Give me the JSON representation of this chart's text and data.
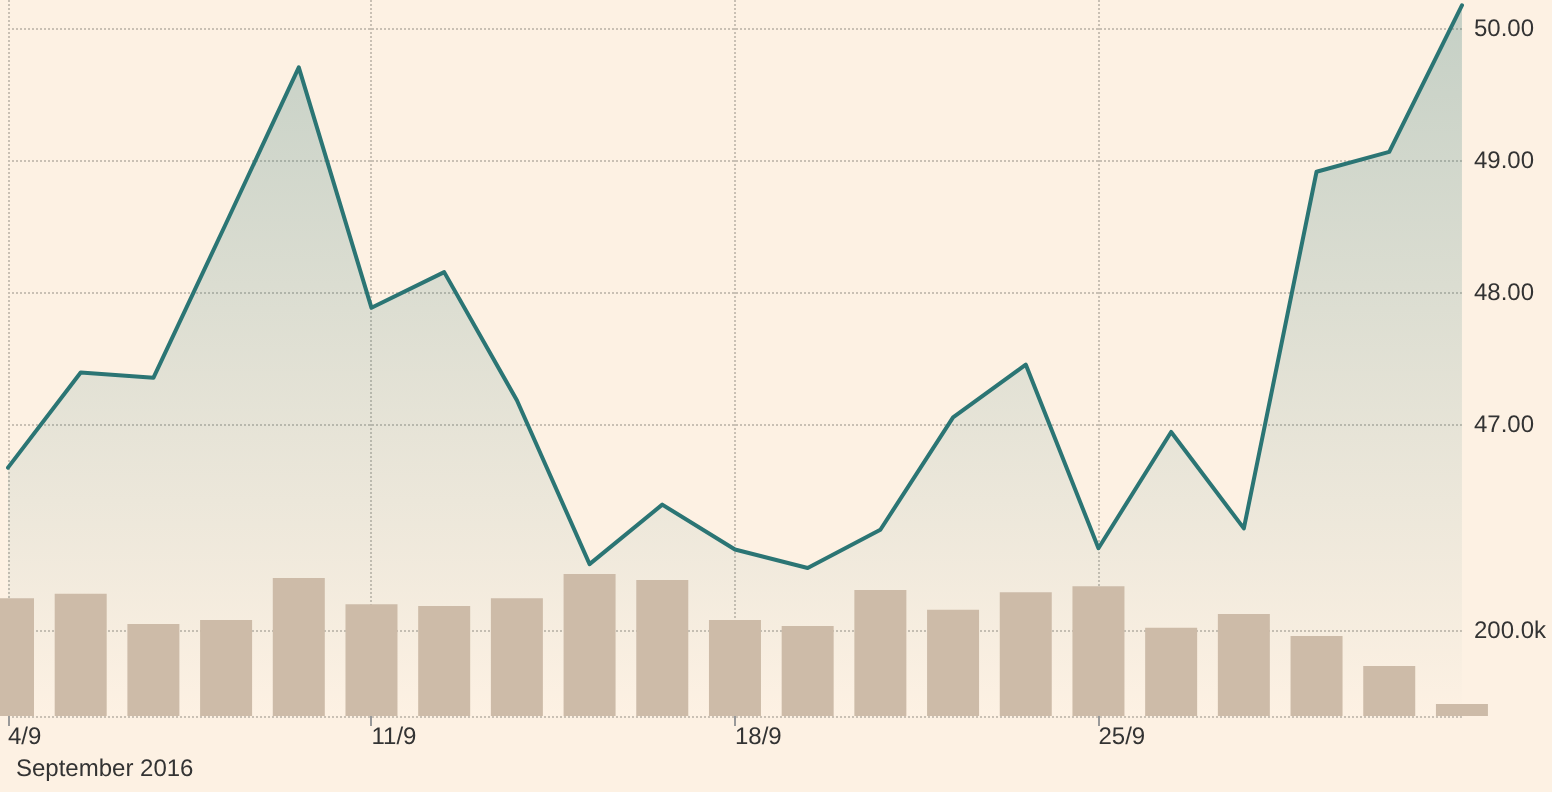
{
  "chart_data": {
    "type": "area",
    "xlabel": "September 2016",
    "categories": [
      "4/9",
      null,
      null,
      null,
      null,
      "11/9",
      null,
      null,
      null,
      null,
      "18/9",
      null,
      null,
      null,
      null,
      "25/9",
      null,
      null,
      null,
      null,
      null
    ],
    "series": [
      {
        "color": "#2b7574",
        "values": [
          46.67,
          47.39,
          47.35,
          48.52,
          49.7,
          47.88,
          48.15,
          47.18,
          45.94,
          46.39,
          46.05,
          45.91,
          46.2,
          47.05,
          47.45,
          46.06,
          46.94,
          46.21,
          48.91,
          49.06,
          50.17
        ]
      },
      {
        "type": "bar",
        "axis": "y2",
        "color": "#cdbba8",
        "values": [
          274000,
          284000,
          214000,
          223000,
          321000,
          260000,
          256000,
          274000,
          330000,
          316000,
          223000,
          209000,
          293000,
          247000,
          288000,
          302000,
          205000,
          237000,
          186000,
          116000,
          28000
        ]
      }
    ],
    "ylim": [
      44.79,
      50.21
    ],
    "yticks": [
      {
        "value": 47,
        "label": "47.00"
      },
      {
        "value": 48,
        "label": "48.00"
      },
      {
        "value": 49,
        "label": "49.00"
      },
      {
        "value": 50,
        "label": "50.00"
      }
    ],
    "y2lim": [
      0,
      1665000
    ],
    "y2ticks": [
      {
        "value": 0,
        "label": null
      },
      {
        "value": 200000,
        "label": "200.0k"
      }
    ],
    "grid": true,
    "marker": "none"
  }
}
